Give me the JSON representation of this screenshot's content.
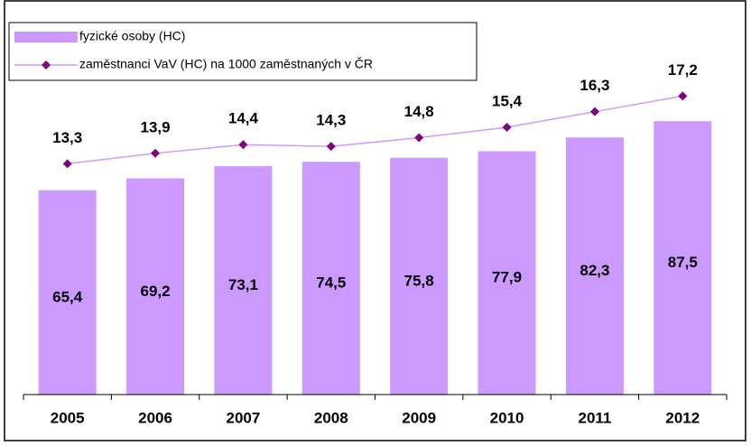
{
  "chart_data": {
    "type": "bar",
    "categories": [
      "2005",
      "2006",
      "2007",
      "2008",
      "2009",
      "2010",
      "2011",
      "2012"
    ],
    "series": [
      {
        "name": "fyzické osoby (HC)",
        "color": "#cc99ff",
        "type": "bar",
        "values": [
          65.4,
          69.2,
          73.1,
          74.5,
          75.8,
          77.9,
          82.3,
          87.5
        ],
        "value_labels": [
          "65,4",
          "69,2",
          "73,1",
          "74,5",
          "75,8",
          "77,9",
          "82,3",
          "87,5"
        ]
      },
      {
        "name": "zaměstnanci VaV (HC) na 1000 zaměstnaných v ČR",
        "color": "#cc99ff",
        "marker_color": "#800080",
        "type": "line",
        "axis": "y2",
        "values": [
          13.3,
          13.9,
          14.4,
          14.3,
          14.8,
          15.4,
          16.3,
          17.2
        ],
        "value_labels": [
          "13,3",
          "13,9",
          "14,4",
          "14,3",
          "14,8",
          "15,4",
          "16,3",
          "17,2"
        ]
      }
    ],
    "ylim": [
      0,
      100
    ],
    "y2lim": [
      0,
      18
    ],
    "legend": "top-left"
  }
}
